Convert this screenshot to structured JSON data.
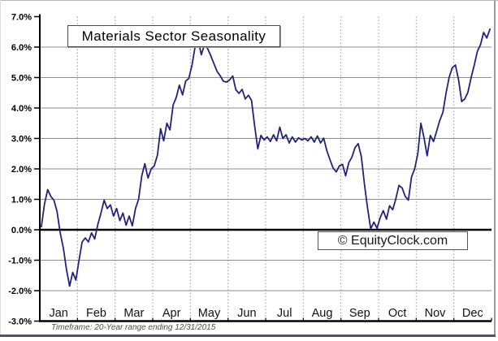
{
  "title": "Materials Sector Seasonality",
  "watermark": "© EquityClock.com",
  "footer_note": "Timeframe: 20-Year range ending 12/31/2015",
  "chart_data": {
    "type": "line",
    "title": "Materials Sector Seasonality",
    "xlabel": "",
    "ylabel": "",
    "x_categories": [
      "Jan",
      "Feb",
      "Mar",
      "Apr",
      "May",
      "Jun",
      "Jul",
      "Aug",
      "Sep",
      "Oct",
      "Nov",
      "Dec"
    ],
    "ylim": [
      -3.0,
      7.0
    ],
    "ytick_step": 1.0,
    "ytick_labels": [
      "7.0%",
      "6.0%",
      "5.0%",
      "4.0%",
      "3.0%",
      "2.0%",
      "1.0%",
      "0.0%",
      "-1.0%",
      "-2.0%",
      "-3.0%"
    ],
    "grid": true,
    "legend": "none",
    "samples_per_month": 12,
    "values": [
      0.1,
      0.85,
      1.32,
      1.1,
      0.97,
      0.6,
      -0.1,
      -0.6,
      -1.3,
      -1.85,
      -1.4,
      -1.65,
      -1.0,
      -0.4,
      -0.27,
      -0.4,
      -0.1,
      -0.3,
      0.17,
      0.55,
      0.97,
      0.7,
      0.82,
      0.45,
      0.7,
      0.3,
      0.55,
      0.15,
      0.45,
      0.13,
      0.7,
      1.0,
      1.77,
      2.17,
      1.7,
      2.0,
      2.1,
      2.45,
      3.32,
      2.92,
      3.5,
      3.28,
      4.1,
      4.35,
      4.75,
      4.43,
      4.88,
      4.97,
      5.4,
      6.0,
      6.23,
      5.75,
      6.08,
      5.95,
      5.72,
      5.46,
      5.2,
      5.06,
      4.88,
      4.85,
      4.92,
      5.05,
      4.6,
      4.48,
      4.61,
      4.3,
      4.42,
      4.25,
      3.4,
      2.66,
      3.1,
      2.95,
      3.05,
      2.9,
      3.12,
      2.92,
      3.37,
      3.0,
      3.12,
      2.85,
      3.05,
      2.88,
      3.02,
      2.95,
      3.0,
      2.92,
      3.05,
      2.88,
      3.08,
      2.85,
      3.01,
      2.6,
      2.3,
      2.03,
      1.9,
      2.1,
      2.15,
      1.77,
      2.2,
      2.39,
      2.7,
      2.83,
      2.4,
      1.5,
      0.7,
      0.03,
      0.25,
      0.05,
      0.39,
      0.63,
      0.35,
      0.79,
      0.66,
      1.01,
      1.46,
      1.37,
      1.1,
      0.97,
      1.73,
      2.0,
      2.5,
      3.5,
      3.01,
      2.43,
      3.1,
      2.9,
      3.23,
      3.59,
      3.86,
      4.48,
      5.01,
      5.32,
      5.41,
      4.92,
      4.21,
      4.3,
      4.52,
      5.0,
      5.41,
      5.86,
      6.08,
      6.48,
      6.3,
      6.59
    ],
    "colors": {
      "line": "#23237a",
      "grid": "#8c8c8c",
      "month_grid": "#999999",
      "zero_line": "#000000",
      "axis": "#000000",
      "tick_label": "#000000",
      "month_label": "#111111"
    }
  }
}
